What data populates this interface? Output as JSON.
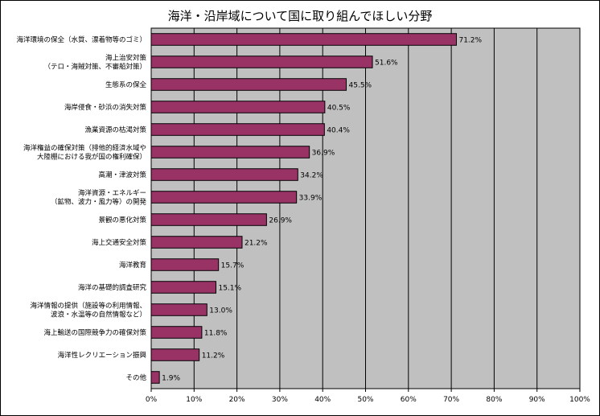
{
  "chart_data": {
    "type": "bar",
    "orientation": "horizontal",
    "title": "海洋・沿岸域について国に取り組んでほしい分野",
    "xlim": [
      0,
      100
    ],
    "ticks": [
      "0%",
      "10%",
      "20%",
      "30%",
      "40%",
      "50%",
      "60%",
      "70%",
      "80%",
      "90%",
      "100%"
    ],
    "grid": true,
    "bar_color": "#993366",
    "plot_bg": "#c0c0c0",
    "categories": [
      [
        "海洋環境の保全（水質、漂着物等のゴミ）"
      ],
      [
        "海上治安対策",
        "（テロ・海賊対策、不審船対策）"
      ],
      [
        "生態系の保全"
      ],
      [
        "海岸侵食・砂浜の消失対策"
      ],
      [
        "漁業資源の枯渇対策"
      ],
      [
        "海洋権益の確保対策（排他的経済水域や",
        "大陸棚における我が国の権利確保）"
      ],
      [
        "高潮・津波対策"
      ],
      [
        "海洋資源・エネルギー",
        "（鉱物、波力・風力等）の開発"
      ],
      [
        "景観の悪化対策"
      ],
      [
        "海上交通安全対策"
      ],
      [
        "海洋教育"
      ],
      [
        "海洋の基礎的調査研究"
      ],
      [
        "海洋情報の提供（施設等の利用情報、",
        "波浪・水温等の自然情報など）"
      ],
      [
        "海上輸送の国際競争力の確保対策"
      ],
      [
        "海洋性レクリエーション振興"
      ],
      [
        "その他"
      ]
    ],
    "values": [
      71.2,
      51.6,
      45.5,
      40.5,
      40.4,
      36.9,
      34.2,
      33.9,
      26.9,
      21.2,
      15.7,
      15.1,
      13.0,
      11.8,
      11.2,
      1.9
    ],
    "value_labels": [
      "71.2%",
      "51.6%",
      "45.5%",
      "40.5%",
      "40.4%",
      "36.9%",
      "34.2%",
      "33.9%",
      "26.9%",
      "21.2%",
      "15.7%",
      "15.1%",
      "13.0%",
      "11.8%",
      "11.2%",
      "1.9%"
    ]
  }
}
